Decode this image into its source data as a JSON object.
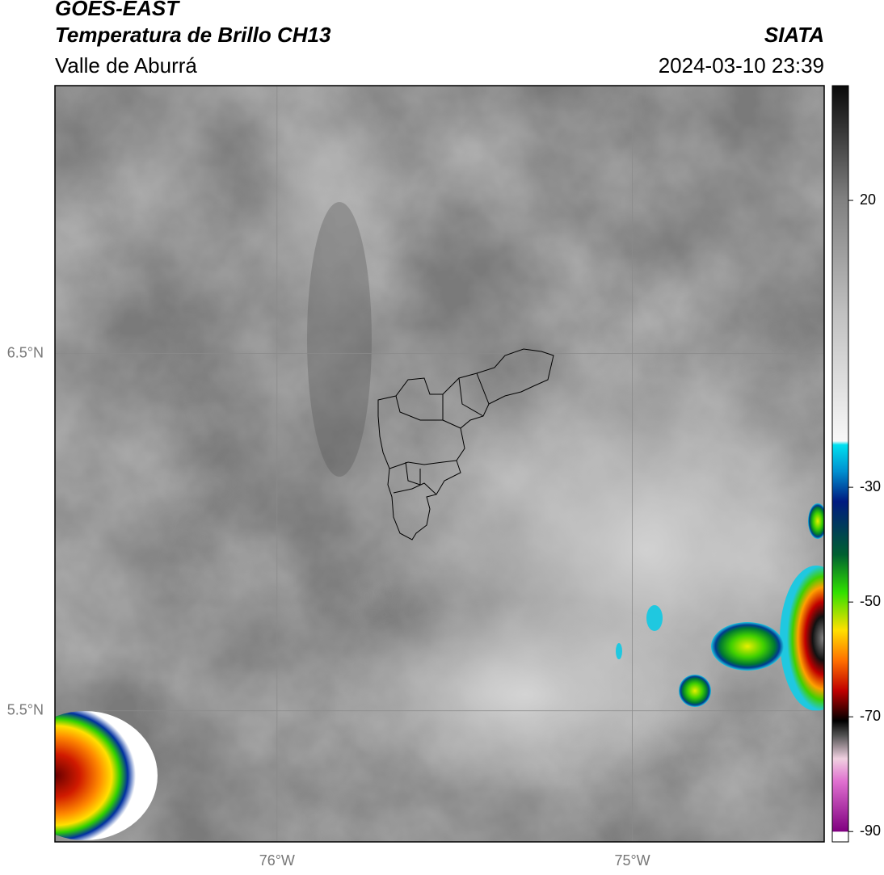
{
  "header": {
    "title": "GOES-EAST",
    "subtitle": "Temperatura de Brillo CH13",
    "region": "Valle de Aburrá",
    "source": "SIATA",
    "timestamp": "2024-03-10 23:39"
  },
  "map": {
    "xlim": [
      -76.625,
      -74.46
    ],
    "ylim": [
      5.133,
      7.25
    ],
    "xticks": [
      {
        "value": -76,
        "label": "76°W"
      },
      {
        "value": -75,
        "label": "75°W"
      }
    ],
    "yticks": [
      {
        "value": 6.5,
        "label": "6.5°N"
      },
      {
        "value": 5.5,
        "label": "5.5°N"
      }
    ],
    "grid": true
  },
  "colorbar": {
    "lim": [
      -91.8,
      40
    ],
    "ticks": [
      20,
      -30,
      -50,
      -70,
      -90
    ]
  }
}
